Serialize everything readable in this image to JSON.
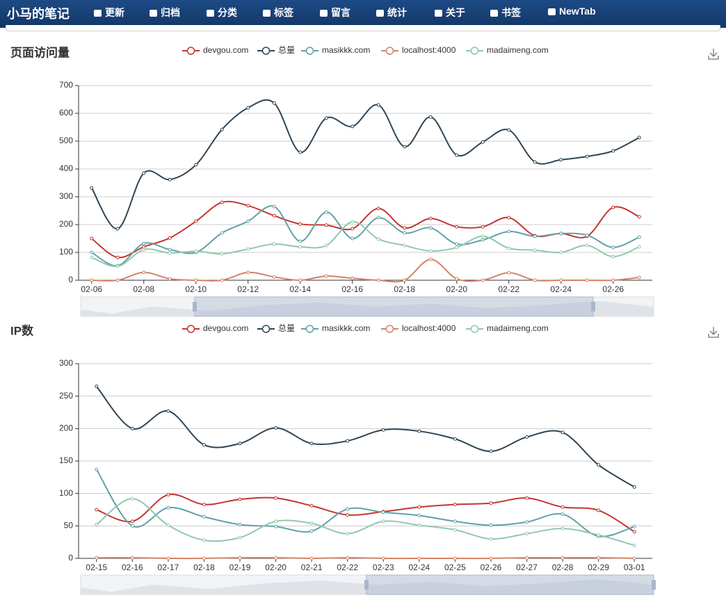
{
  "nav": {
    "brand": "小马的笔记",
    "items": [
      "更新",
      "归档",
      "分类",
      "标签",
      "留言",
      "统计",
      "关于",
      "书签",
      "NewTab"
    ]
  },
  "chart_data": [
    {
      "type": "line",
      "title": "页面访问量",
      "smooth": true,
      "categories": [
        "02-06",
        null,
        "02-08",
        null,
        "02-10",
        null,
        "02-12",
        null,
        "02-14",
        null,
        "02-16",
        null,
        "02-18",
        null,
        "02-20",
        null,
        "02-22",
        null,
        "02-24",
        null,
        "02-26",
        null
      ],
      "ylim": [
        0,
        700
      ],
      "yticks": [
        0,
        100,
        200,
        300,
        400,
        500,
        600,
        700
      ],
      "grid": true,
      "series": [
        {
          "name": "devgou.com",
          "color": "#c23531",
          "values": [
            150,
            82,
            120,
            152,
            212,
            280,
            268,
            232,
            202,
            198,
            185,
            258,
            188,
            222,
            192,
            192,
            225,
            160,
            168,
            158,
            262,
            228
          ]
        },
        {
          "name": "总量",
          "color": "#2f4554",
          "values": [
            332,
            185,
            385,
            362,
            415,
            542,
            620,
            637,
            460,
            583,
            553,
            630,
            480,
            587,
            450,
            497,
            540,
            425,
            433,
            445,
            465,
            513
          ]
        },
        {
          "name": "masikkk.com",
          "color": "#61a0a8",
          "values": [
            100,
            52,
            132,
            110,
            100,
            170,
            212,
            265,
            140,
            245,
            150,
            225,
            170,
            188,
            130,
            145,
            175,
            158,
            168,
            162,
            118,
            155
          ]
        },
        {
          "name": "localhost:4000",
          "color": "#d48265",
          "values": [
            0,
            0,
            28,
            5,
            0,
            0,
            28,
            12,
            0,
            15,
            7,
            0,
            0,
            75,
            5,
            0,
            27,
            0,
            0,
            0,
            0,
            10
          ]
        },
        {
          "name": "madaimeng.com",
          "color": "#91c7ae",
          "values": [
            82,
            50,
            110,
            98,
            104,
            95,
            112,
            130,
            120,
            125,
            210,
            148,
            125,
            105,
            118,
            158,
            115,
            108,
            100,
            125,
            85,
            120
          ]
        }
      ]
    },
    {
      "type": "line",
      "title": "IP数",
      "smooth": true,
      "categories": [
        "02-15",
        "02-16",
        "02-17",
        "02-18",
        "02-19",
        "02-20",
        "02-21",
        "02-22",
        "02-23",
        "02-24",
        "02-25",
        "02-26",
        "02-27",
        "02-28",
        "02-29",
        "03-01"
      ],
      "ylim": [
        0,
        300
      ],
      "yticks": [
        0,
        50,
        100,
        150,
        200,
        250,
        300
      ],
      "grid": true,
      "series": [
        {
          "name": "devgou.com",
          "color": "#c23531",
          "values": [
            75,
            57,
            98,
            83,
            91,
            93,
            81,
            67,
            72,
            79,
            83,
            85,
            93,
            79,
            74,
            41
          ]
        },
        {
          "name": "总量",
          "color": "#2f4554",
          "values": [
            265,
            200,
            227,
            175,
            177,
            201,
            177,
            181,
            198,
            196,
            184,
            165,
            187,
            194,
            144,
            110
          ]
        },
        {
          "name": "masikkk.com",
          "color": "#61a0a8",
          "values": [
            137,
            50,
            78,
            64,
            52,
            49,
            42,
            76,
            71,
            66,
            57,
            51,
            56,
            68,
            34,
            49
          ]
        },
        {
          "name": "localhost:4000",
          "color": "#d48265",
          "values": [
            1,
            1,
            0,
            0,
            1,
            1,
            0,
            1,
            0,
            0,
            0,
            0,
            1,
            1,
            1,
            0
          ]
        },
        {
          "name": "madaimeng.com",
          "color": "#91c7ae",
          "values": [
            52,
            92,
            51,
            28,
            32,
            57,
            54,
            38,
            57,
            51,
            44,
            30,
            38,
            46,
            36,
            20
          ]
        }
      ]
    }
  ]
}
